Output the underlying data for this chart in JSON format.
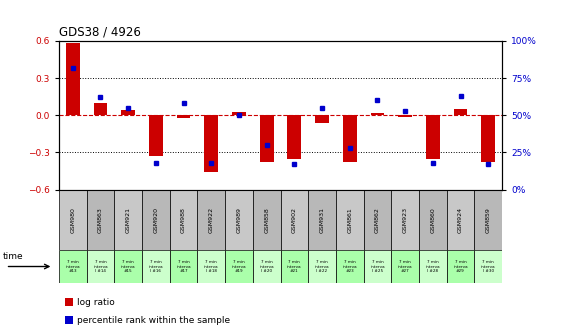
{
  "title": "GDS38 / 4926",
  "samples": [
    "GSM980",
    "GSM863",
    "GSM921",
    "GSM920",
    "GSM988",
    "GSM922",
    "GSM989",
    "GSM858",
    "GSM902",
    "GSM931",
    "GSM861",
    "GSM862",
    "GSM923",
    "GSM860",
    "GSM924",
    "GSM859"
  ],
  "time_labels": [
    "7 min\ninterva\n#13",
    "7 min\ninterva\nl #14",
    "7 min\ninterva\n#15",
    "7 min\ninterva\nl #16",
    "7 min\ninterva\n#17",
    "7 min\ninterva\nl #18",
    "7 min\ninterva\n#19",
    "7 min\ninterva\nl #20",
    "7 min\ninterva\n#21",
    "7 min\ninterva\nl #22",
    "7 min\ninterva\n#23",
    "7 min\ninterva\nl #25",
    "7 min\ninterva\n#27",
    "7 min\ninterva\nl #28",
    "7 min\ninterva\n#29",
    "7 min\ninterva\nl #30"
  ],
  "log_ratio": [
    0.58,
    0.1,
    0.04,
    -0.33,
    -0.02,
    -0.46,
    0.03,
    -0.38,
    -0.35,
    -0.06,
    -0.38,
    0.02,
    -0.01,
    -0.35,
    0.05,
    -0.38
  ],
  "percentile": [
    82,
    62,
    55,
    18,
    58,
    18,
    50,
    30,
    17,
    55,
    28,
    60,
    53,
    18,
    63,
    17
  ],
  "ylim_left": [
    -0.6,
    0.6
  ],
  "ylim_right": [
    0,
    100
  ],
  "yticks_left": [
    -0.6,
    -0.3,
    0.0,
    0.3,
    0.6
  ],
  "yticks_right": [
    0,
    25,
    50,
    75,
    100
  ],
  "bar_color": "#cc0000",
  "dot_color": "#0000cc",
  "hline_color": "#cc0000",
  "dotline_color": "#000000",
  "bg_color": "#ffffff",
  "sample_bg_even": "#c8c8c8",
  "sample_bg_odd": "#b8b8b8",
  "time_bg_even": "#aaffaa",
  "time_bg_odd": "#ccffcc",
  "legend_bar_label": "log ratio",
  "legend_dot_label": "percentile rank within the sample"
}
